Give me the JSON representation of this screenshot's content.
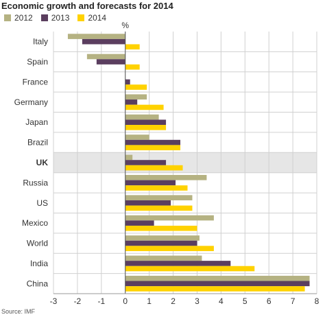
{
  "chart_data": {
    "type": "bar",
    "orientation": "horizontal",
    "title": "Economic growth and forecasts for 2014",
    "unit": "%",
    "source": "Source: IMF",
    "categories": [
      "Italy",
      "Spain",
      "France",
      "Germany",
      "Japan",
      "Brazil",
      "UK",
      "Russia",
      "US",
      "Mexico",
      "World",
      "India",
      "China"
    ],
    "highlight": "UK",
    "series": [
      {
        "name": "2012",
        "color": "#b5b282",
        "values": [
          -2.4,
          -1.6,
          0.0,
          0.9,
          1.4,
          1.0,
          0.3,
          3.4,
          2.8,
          3.7,
          3.1,
          3.2,
          7.7
        ]
      },
      {
        "name": "2013",
        "color": "#5b3e5f",
        "values": [
          -1.8,
          -1.2,
          0.2,
          0.5,
          1.7,
          2.3,
          1.7,
          2.1,
          1.9,
          1.2,
          3.0,
          4.4,
          7.7
        ]
      },
      {
        "name": "2014",
        "color": "#ffd200",
        "values": [
          0.6,
          0.6,
          0.9,
          1.6,
          1.7,
          2.3,
          2.4,
          2.6,
          2.8,
          3.0,
          3.7,
          5.4,
          7.5
        ]
      }
    ],
    "xlim": [
      -3,
      8
    ],
    "xticks": [
      "-3",
      "-2",
      "-1",
      "0",
      "1",
      "2",
      "3",
      "4",
      "5",
      "6",
      "7",
      "8"
    ],
    "grid": true,
    "legend": "top-left"
  }
}
